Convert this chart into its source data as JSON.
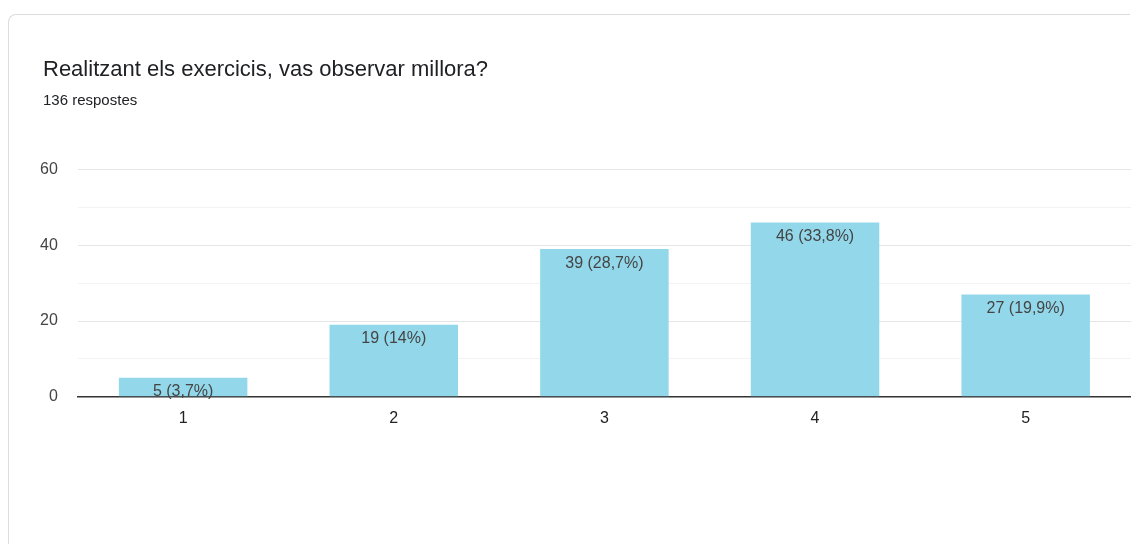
{
  "chart_data": {
    "type": "bar",
    "title": "Realitzant els exercicis, vas observar millora?",
    "subtitle": "136 respostes",
    "categories": [
      "1",
      "2",
      "3",
      "4",
      "5"
    ],
    "values": [
      5,
      19,
      39,
      46,
      27
    ],
    "value_labels": [
      "5 (3,7%)",
      "19 (14%)",
      "39 (28,7%)",
      "46 (33,8%)",
      "27 (19,9%)"
    ],
    "color": "#93d8ea",
    "ylim": [
      0,
      60
    ],
    "yticks": [
      0,
      {
        "value": 10,
        "label": null
      },
      20,
      {
        "value": 30,
        "label": null
      },
      40,
      {
        "value": 50,
        "label": null
      },
      60
    ],
    "grid": "y",
    "legend": false
  }
}
